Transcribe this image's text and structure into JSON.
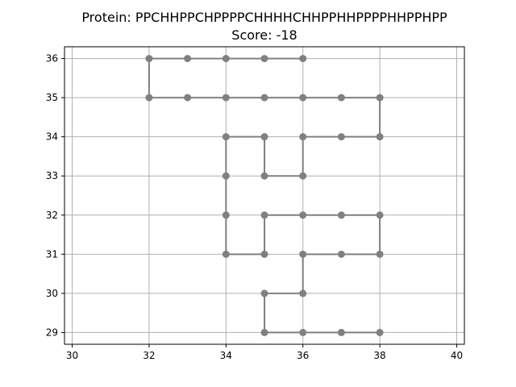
{
  "chart_data": {
    "type": "line",
    "title": "Protein: PPCHHPPCHPPPPCHHHHCHHPPHHPPPPHHPPHPP",
    "subtitle": "Score: -18",
    "xlabel": "",
    "ylabel": "",
    "xlim": [
      29.8,
      40.2
    ],
    "ylim": [
      28.7,
      36.3
    ],
    "xticks": [
      30,
      32,
      34,
      36,
      38,
      40
    ],
    "yticks": [
      29,
      30,
      31,
      32,
      33,
      34,
      35,
      36
    ],
    "grid": true,
    "series": [
      {
        "color": "#808080",
        "points": [
          [
            35,
            29
          ],
          [
            36,
            29
          ],
          [
            37,
            29
          ],
          [
            38,
            29
          ],
          [
            35,
            30
          ],
          [
            36,
            30
          ],
          [
            36,
            31
          ],
          [
            37,
            31
          ],
          [
            38,
            31
          ],
          [
            38,
            32
          ],
          [
            37,
            32
          ],
          [
            36,
            32
          ],
          [
            35,
            32
          ],
          [
            35,
            31
          ],
          [
            34,
            31
          ],
          [
            34,
            32
          ],
          [
            34,
            33
          ],
          [
            34,
            34
          ],
          [
            35,
            34
          ],
          [
            35,
            33
          ],
          [
            36,
            33
          ],
          [
            36,
            34
          ],
          [
            37,
            34
          ],
          [
            38,
            34
          ],
          [
            38,
            35
          ],
          [
            37,
            35
          ],
          [
            36,
            35
          ],
          [
            35,
            35
          ],
          [
            34,
            35
          ],
          [
            33,
            35
          ],
          [
            32,
            35
          ],
          [
            32,
            36
          ],
          [
            33,
            36
          ],
          [
            34,
            36
          ],
          [
            35,
            36
          ],
          [
            36,
            36
          ]
        ],
        "segments": [
          [
            [
              35,
              29
            ],
            [
              38,
              29
            ]
          ],
          [
            [
              35,
              29
            ],
            [
              35,
              30
            ]
          ],
          [
            [
              35,
              30
            ],
            [
              36,
              30
            ]
          ],
          [
            [
              36,
              30
            ],
            [
              36,
              31
            ]
          ],
          [
            [
              36,
              31
            ],
            [
              38,
              31
            ]
          ],
          [
            [
              38,
              31
            ],
            [
              38,
              32
            ]
          ],
          [
            [
              38,
              32
            ],
            [
              35,
              32
            ]
          ],
          [
            [
              35,
              32
            ],
            [
              35,
              31
            ]
          ],
          [
            [
              35,
              31
            ],
            [
              34,
              31
            ]
          ],
          [
            [
              34,
              31
            ],
            [
              34,
              34
            ]
          ],
          [
            [
              34,
              34
            ],
            [
              35,
              34
            ]
          ],
          [
            [
              35,
              34
            ],
            [
              35,
              33
            ]
          ],
          [
            [
              35,
              33
            ],
            [
              36,
              33
            ]
          ],
          [
            [
              36,
              33
            ],
            [
              36,
              34
            ]
          ],
          [
            [
              36,
              34
            ],
            [
              38,
              34
            ]
          ],
          [
            [
              38,
              34
            ],
            [
              38,
              35
            ]
          ],
          [
            [
              38,
              35
            ],
            [
              32,
              35
            ]
          ],
          [
            [
              32,
              35
            ],
            [
              32,
              36
            ]
          ],
          [
            [
              32,
              36
            ],
            [
              36,
              36
            ]
          ]
        ]
      }
    ]
  }
}
